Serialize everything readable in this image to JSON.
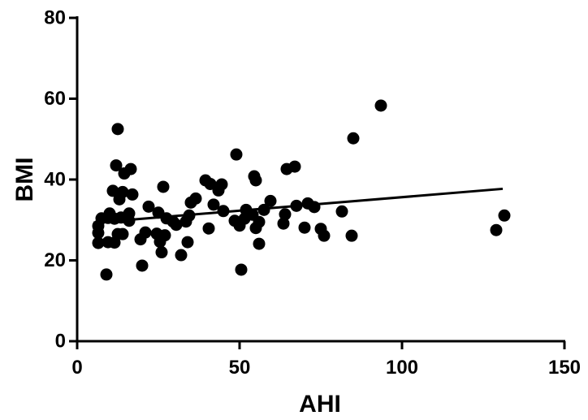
{
  "chart_data": {
    "type": "scatter",
    "title": "",
    "xlabel": "AHI",
    "ylabel": "BMI",
    "xlim": [
      0,
      150
    ],
    "ylim": [
      0,
      80
    ],
    "xticks": [
      0,
      50,
      100,
      150
    ],
    "yticks": [
      0,
      20,
      40,
      60,
      80
    ],
    "xtick_labels": [
      "0",
      "50",
      "100",
      "150"
    ],
    "ytick_labels": [
      "0",
      "20",
      "40",
      "60",
      "80"
    ],
    "grid": false,
    "legend": "none",
    "point_color": "#000000",
    "points": [
      [
        12.5,
        52.5
      ],
      [
        93.5,
        58.3
      ],
      [
        85.0,
        50.2
      ],
      [
        49.0,
        46.2
      ],
      [
        67.0,
        43.2
      ],
      [
        64.5,
        42.6
      ],
      [
        16.5,
        42.6
      ],
      [
        12.0,
        43.5
      ],
      [
        14.5,
        41.5
      ],
      [
        54.5,
        40.8
      ],
      [
        55.0,
        39.8
      ],
      [
        39.5,
        39.8
      ],
      [
        41.0,
        38.9
      ],
      [
        44.5,
        38.8
      ],
      [
        26.5,
        38.2
      ],
      [
        43.5,
        37.3
      ],
      [
        11.0,
        37.2
      ],
      [
        14.0,
        36.9
      ],
      [
        17.0,
        36.3
      ],
      [
        13.0,
        35.1
      ],
      [
        36.5,
        35.3
      ],
      [
        35.0,
        34.3
      ],
      [
        59.5,
        34.7
      ],
      [
        42.0,
        33.8
      ],
      [
        71.0,
        34.1
      ],
      [
        73.0,
        33.2
      ],
      [
        67.5,
        33.5
      ],
      [
        22.0,
        33.3
      ],
      [
        57.5,
        32.5
      ],
      [
        52.0,
        32.5
      ],
      [
        45.0,
        32.2
      ],
      [
        81.5,
        32.1
      ],
      [
        10.0,
        31.6
      ],
      [
        16.0,
        31.6
      ],
      [
        25.0,
        31.8
      ],
      [
        34.5,
        31.1
      ],
      [
        54.0,
        31.3
      ],
      [
        64.0,
        31.4
      ],
      [
        27.5,
        30.4
      ],
      [
        7.5,
        30.4
      ],
      [
        9.5,
        30.5
      ],
      [
        11.5,
        30.3
      ],
      [
        13.5,
        30.6
      ],
      [
        16.0,
        29.8
      ],
      [
        29.5,
        29.6
      ],
      [
        33.5,
        29.6
      ],
      [
        48.5,
        29.8
      ],
      [
        51.5,
        30.3
      ],
      [
        56.0,
        29.5
      ],
      [
        63.5,
        29.1
      ],
      [
        6.5,
        28.5
      ],
      [
        30.5,
        28.8
      ],
      [
        50.0,
        28.6
      ],
      [
        70.0,
        28.1
      ],
      [
        40.5,
        27.9
      ],
      [
        55.0,
        28.0
      ],
      [
        75.0,
        27.8
      ],
      [
        129.0,
        27.5
      ],
      [
        131.5,
        31.1
      ],
      [
        6.5,
        26.8
      ],
      [
        12.5,
        26.5
      ],
      [
        14.0,
        26.5
      ],
      [
        21.0,
        26.9
      ],
      [
        24.5,
        26.6
      ],
      [
        27.0,
        26.2
      ],
      [
        76.0,
        26.1
      ],
      [
        84.5,
        26.1
      ],
      [
        19.5,
        25.2
      ],
      [
        25.5,
        24.6
      ],
      [
        9.5,
        24.5
      ],
      [
        6.5,
        24.3
      ],
      [
        11.5,
        24.4
      ],
      [
        34.0,
        24.5
      ],
      [
        56.0,
        24.1
      ],
      [
        26.0,
        22.0
      ],
      [
        32.0,
        21.3
      ],
      [
        20.0,
        18.7
      ],
      [
        50.5,
        17.7
      ],
      [
        9.0,
        16.5
      ]
    ],
    "trendline": {
      "x": [
        5,
        131
      ],
      "y": [
        29.3,
        37.7
      ]
    }
  }
}
